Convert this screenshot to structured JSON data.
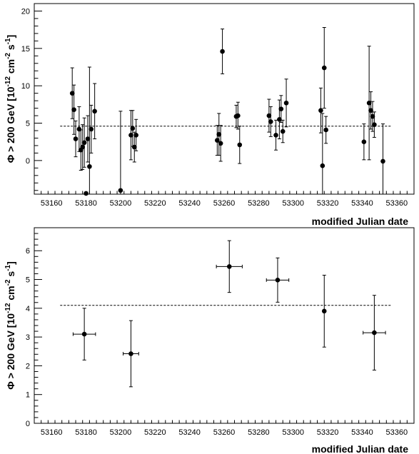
{
  "chart_data": [
    {
      "type": "scatter",
      "title": "",
      "xlabel": "modified Julian date",
      "ylabel_parts": {
        "main": "Φ > 200 GeV [10",
        "exp1": "-12",
        "mid": " cm",
        "exp2": "-2",
        "mid2": " s",
        "exp3": "-1",
        "end": "]"
      },
      "xlim": [
        53150,
        53370
      ],
      "ylim": [
        -4.5,
        21
      ],
      "xticks": [
        53160,
        53180,
        53200,
        53220,
        53240,
        53260,
        53280,
        53300,
        53320,
        53340,
        53360
      ],
      "yticks": [
        0,
        5,
        10,
        15,
        20
      ],
      "grid": false,
      "mean_line": 4.6,
      "points": [
        {
          "x": 53172,
          "y": 9.0,
          "err": 3.4
        },
        {
          "x": 53173,
          "y": 6.8,
          "err": 3.3
        },
        {
          "x": 53174,
          "y": 2.9,
          "err": 2.4
        },
        {
          "x": 53176,
          "y": 4.2,
          "err": 3.0
        },
        {
          "x": 53177,
          "y": 1.4,
          "err": 2.7
        },
        {
          "x": 53178,
          "y": 1.8,
          "err": 3.0
        },
        {
          "x": 53179,
          "y": 2.4,
          "err": 3.3
        },
        {
          "x": 53180,
          "y": -4.4,
          "err": 0.0
        },
        {
          "x": 53181,
          "y": 2.9,
          "err": 3.1
        },
        {
          "x": 53182,
          "y": -0.8,
          "err": 13.3
        },
        {
          "x": 53183,
          "y": 4.2,
          "err": 3.2
        },
        {
          "x": 53185,
          "y": 6.6,
          "err": 3.7
        },
        {
          "x": 53200,
          "y": -4.0,
          "err": 10.6
        },
        {
          "x": 53206,
          "y": 3.4,
          "err": 3.3
        },
        {
          "x": 53207,
          "y": 4.3,
          "err": 2.4
        },
        {
          "x": 53208,
          "y": 1.8,
          "err": 2.0
        },
        {
          "x": 53209,
          "y": 3.4,
          "err": 2.1
        },
        {
          "x": 53256,
          "y": 2.7,
          "err": 2.0
        },
        {
          "x": 53257,
          "y": 3.5,
          "err": 2.8
        },
        {
          "x": 53258,
          "y": 2.3,
          "err": 2.4
        },
        {
          "x": 53259,
          "y": 14.6,
          "err": 3.0
        },
        {
          "x": 53267,
          "y": 5.9,
          "err": 1.5
        },
        {
          "x": 53268,
          "y": 6.0,
          "err": 1.8
        },
        {
          "x": 53269,
          "y": 2.1,
          "err": 2.5
        },
        {
          "x": 53286,
          "y": 6.0,
          "err": 2.2
        },
        {
          "x": 53287,
          "y": 5.2,
          "err": 2.0
        },
        {
          "x": 53290,
          "y": 3.4,
          "err": 2.0
        },
        {
          "x": 53292,
          "y": 5.5,
          "err": 2.6
        },
        {
          "x": 53293,
          "y": 6.9,
          "err": 1.8
        },
        {
          "x": 53294,
          "y": 3.9,
          "err": 1.5
        },
        {
          "x": 53296,
          "y": 7.7,
          "err": 3.2
        },
        {
          "x": 53316,
          "y": 6.7,
          "err": 3.0
        },
        {
          "x": 53317,
          "y": -0.7,
          "err": 7.0
        },
        {
          "x": 53318,
          "y": 12.4,
          "err": 5.4
        },
        {
          "x": 53319,
          "y": 4.1,
          "err": 1.8
        },
        {
          "x": 53341,
          "y": 2.5,
          "err": 2.4
        },
        {
          "x": 53344,
          "y": 7.7,
          "err": 7.6
        },
        {
          "x": 53345,
          "y": 6.7,
          "err": 2.5
        },
        {
          "x": 53346,
          "y": 5.9,
          "err": 2.0
        },
        {
          "x": 53347,
          "y": 4.8,
          "err": 1.7
        },
        {
          "x": 53352,
          "y": -0.1,
          "err": 5.0
        }
      ]
    },
    {
      "type": "scatter",
      "title": "",
      "xlabel": "modified Julian date",
      "ylabel_parts": {
        "main": "Φ > 200 GeV [10",
        "exp1": "-12",
        "mid": " cm",
        "exp2": "-2",
        "mid2": " s",
        "exp3": "-1",
        "end": "]"
      },
      "xlim": [
        53150,
        53370
      ],
      "ylim": [
        0,
        6.8
      ],
      "xticks": [
        53160,
        53180,
        53200,
        53220,
        53240,
        53260,
        53280,
        53300,
        53320,
        53340,
        53360
      ],
      "yticks": [
        0,
        1,
        2,
        3,
        4,
        5,
        6
      ],
      "grid": false,
      "mean_line": 4.1,
      "points": [
        {
          "x": 53179,
          "y": 3.1,
          "err": 0.9,
          "xerr": 6.5
        },
        {
          "x": 53206,
          "y": 2.42,
          "err": 1.15,
          "xerr": 4.5
        },
        {
          "x": 53263,
          "y": 5.45,
          "err": 0.9,
          "xerr": 7.5
        },
        {
          "x": 53291,
          "y": 4.98,
          "err": 0.77,
          "xerr": 6.5
        },
        {
          "x": 53318,
          "y": 3.9,
          "err": 1.25,
          "xerr": 0.5
        },
        {
          "x": 53347,
          "y": 3.15,
          "err": 1.3,
          "xerr": 6.5
        }
      ]
    }
  ]
}
